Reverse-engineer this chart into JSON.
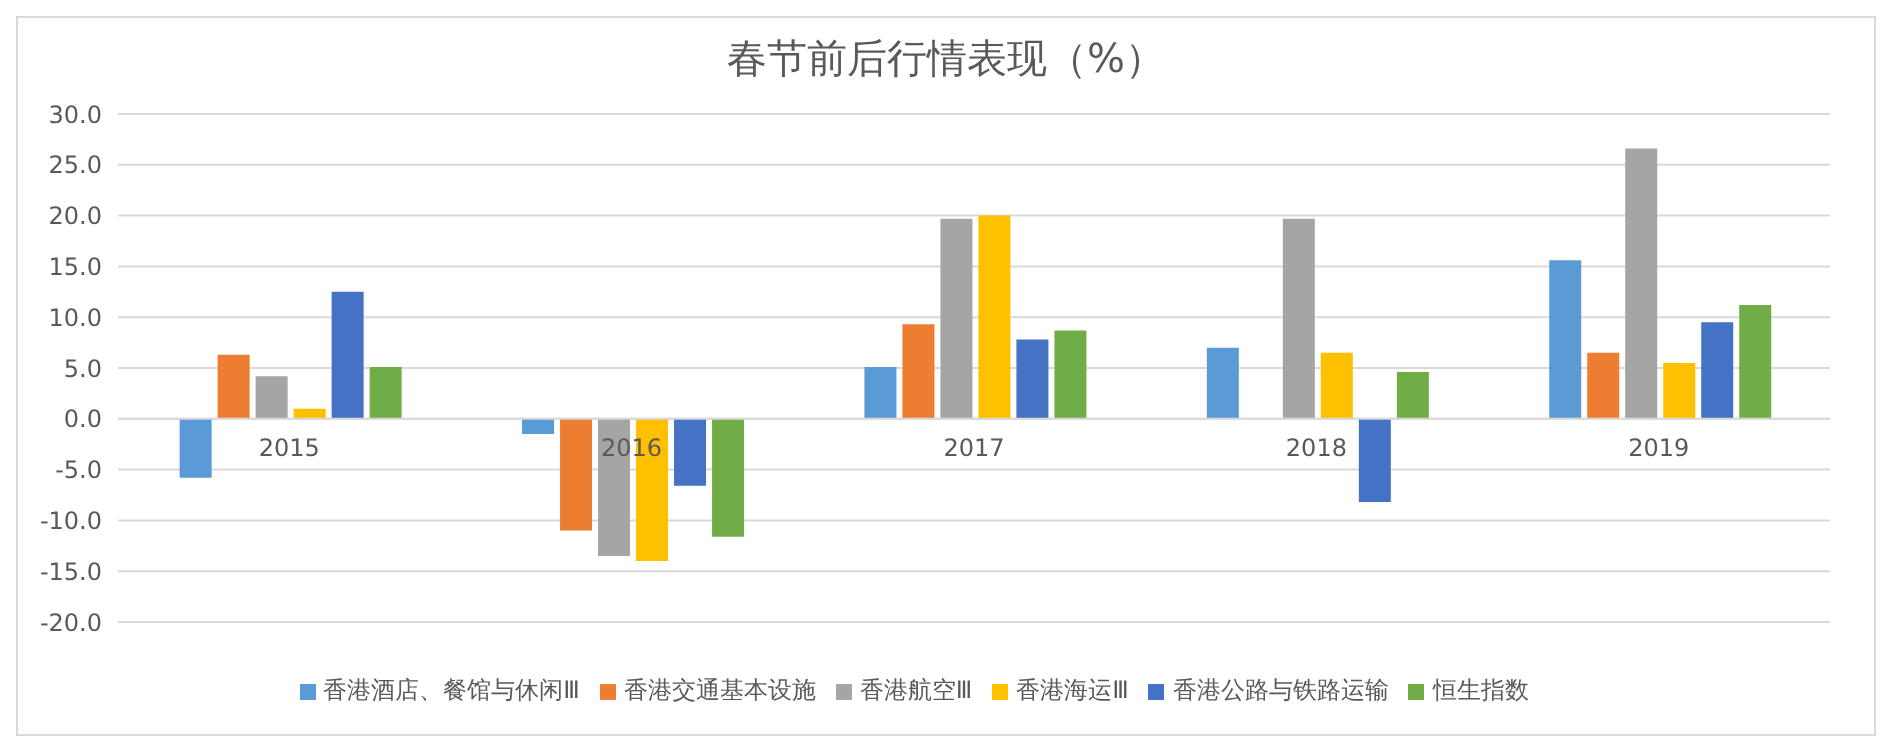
{
  "chart_data": {
    "type": "bar",
    "title": "春节前后行情表现（%）",
    "categories": [
      "2015",
      "2016",
      "2017",
      "2018",
      "2019"
    ],
    "series": [
      {
        "name": "香港酒店、餐馆与休闲Ⅲ",
        "color": "#5b9bd5",
        "values": [
          -5.8,
          -1.5,
          5.1,
          7.0,
          15.6
        ]
      },
      {
        "name": "香港交通基本设施",
        "color": "#ed7d31",
        "values": [
          6.3,
          -11.0,
          9.3,
          null,
          6.5
        ]
      },
      {
        "name": "香港航空Ⅲ",
        "color": "#a5a5a5",
        "values": [
          4.2,
          -13.5,
          19.7,
          19.7,
          26.6
        ]
      },
      {
        "name": "香港海运Ⅲ",
        "color": "#ffc000",
        "values": [
          1.0,
          -14.0,
          20.0,
          6.5,
          5.5
        ]
      },
      {
        "name": "香港公路与铁路运输",
        "color": "#4472c4",
        "values": [
          12.5,
          -6.6,
          7.8,
          -8.2,
          9.5
        ]
      },
      {
        "name": "恒生指数",
        "color": "#70ad47",
        "values": [
          5.1,
          -11.6,
          8.7,
          4.6,
          11.2
        ]
      }
    ],
    "ylim": [
      -20,
      30
    ],
    "yticks": [
      {
        "value": -20,
        "label": "-20.0"
      },
      {
        "value": -15,
        "label": "-15.0"
      },
      {
        "value": -10,
        "label": "-10.0"
      },
      {
        "value": -5,
        "label": "-5.0"
      },
      {
        "value": 0,
        "label": "0.0"
      },
      {
        "value": 5,
        "label": "5.0"
      },
      {
        "value": 10,
        "label": "10.0"
      },
      {
        "value": 15,
        "label": "15.0"
      },
      {
        "value": 20,
        "label": "20.0"
      },
      {
        "value": 25,
        "label": "25.0"
      },
      {
        "value": 30,
        "label": "30.0"
      }
    ],
    "grid": "y",
    "legend": "bottom"
  }
}
